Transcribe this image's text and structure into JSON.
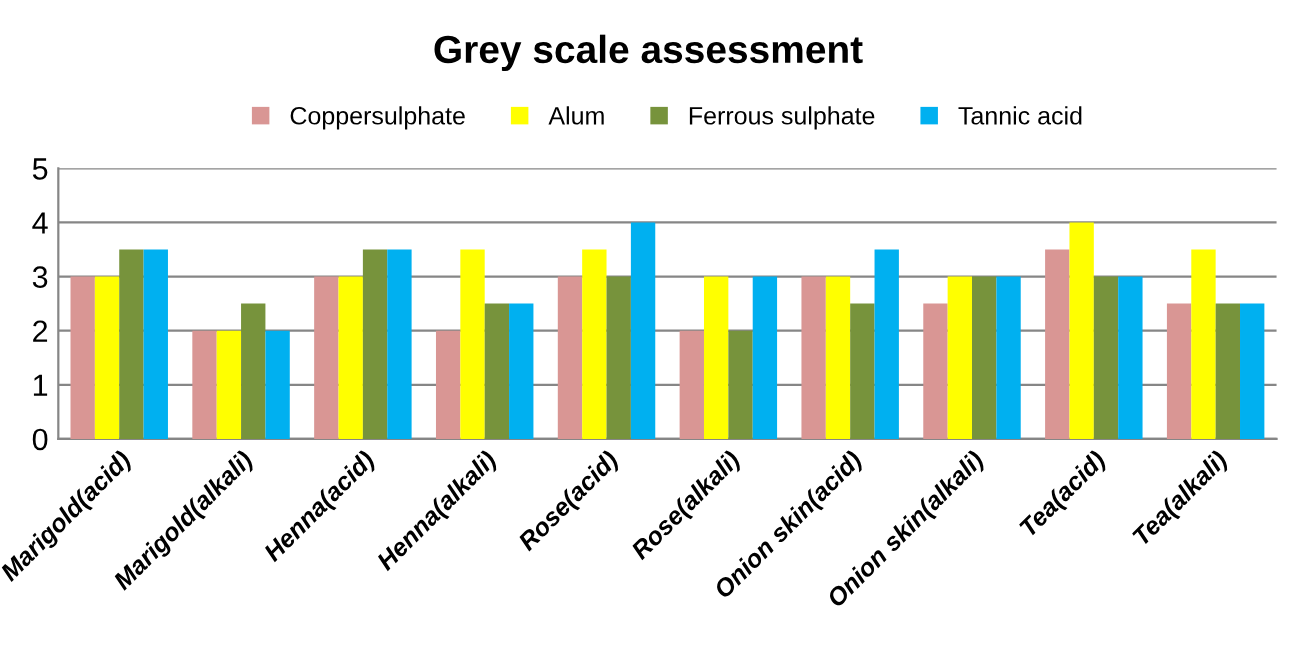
{
  "chart_data": {
    "type": "bar",
    "title": "Grey scale assessment",
    "categories": [
      "Marigold(acid)",
      "Marigold(alkali)",
      "Henna(acid)",
      "Henna(alkali)",
      "Rose(acid)",
      "Rose(alkali)",
      "Onion skin(acid)",
      "Onion skin(alkali)",
      "Tea(acid)",
      "Tea(alkali)"
    ],
    "series": [
      {
        "name": "Coppersulphate",
        "color": "#d99694",
        "values": [
          3,
          2,
          3,
          2,
          3,
          2,
          3,
          2.5,
          3.5,
          2.5
        ]
      },
      {
        "name": "Alum",
        "color": "#ffff00",
        "values": [
          3,
          2,
          3,
          3.5,
          3.5,
          3,
          3,
          3,
          4,
          3.5
        ]
      },
      {
        "name": "Ferrous sulphate",
        "color": "#77933c",
        "values": [
          3.5,
          2.5,
          3.5,
          2.5,
          3,
          2,
          2.5,
          3,
          3,
          2.5
        ]
      },
      {
        "name": "Tannic acid",
        "color": "#00b0f0",
        "values": [
          3.5,
          2,
          3.5,
          2.5,
          4,
          3,
          3.5,
          3,
          3,
          2.5
        ]
      }
    ],
    "ylim": [
      0,
      5
    ],
    "yticks": [
      0,
      1,
      2,
      3,
      4,
      5
    ],
    "grid": "y",
    "legend": "top"
  }
}
